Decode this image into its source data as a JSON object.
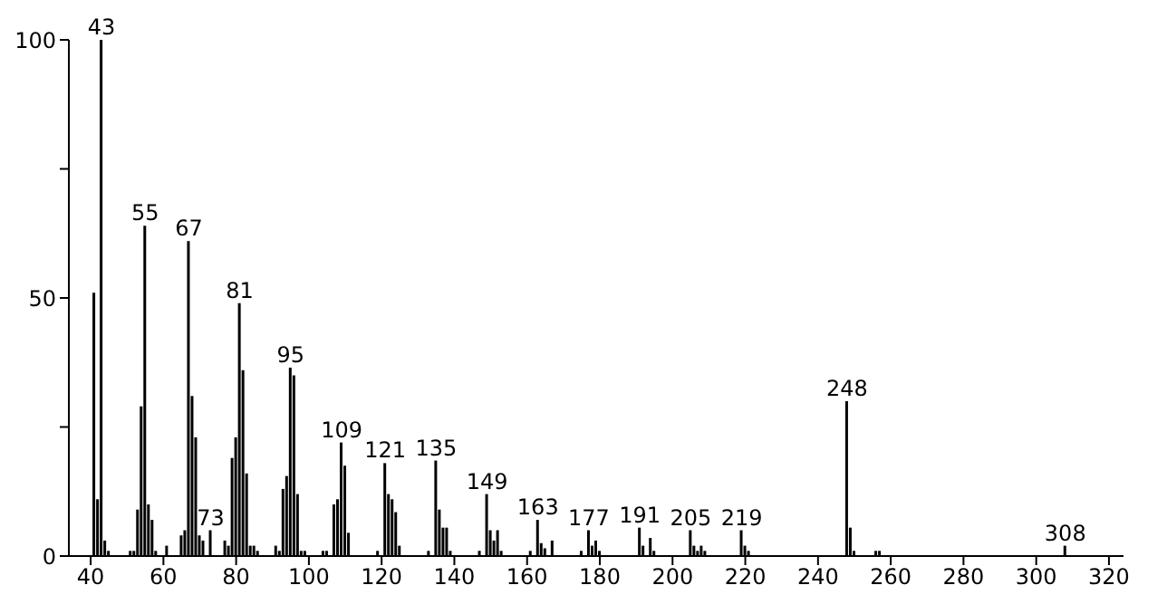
{
  "chart_data": {
    "type": "bar",
    "color": "#000000",
    "x": [
      41,
      42,
      43,
      44,
      45,
      51,
      52,
      53,
      54,
      55,
      56,
      57,
      58,
      61,
      65,
      66,
      67,
      68,
      69,
      70,
      71,
      73,
      77,
      78,
      79,
      80,
      81,
      82,
      83,
      84,
      85,
      86,
      91,
      92,
      93,
      94,
      95,
      96,
      97,
      98,
      99,
      104,
      105,
      107,
      108,
      109,
      110,
      111,
      119,
      121,
      122,
      123,
      124,
      125,
      133,
      135,
      136,
      137,
      138,
      139,
      147,
      149,
      150,
      151,
      152,
      153,
      161,
      163,
      164,
      165,
      167,
      175,
      177,
      178,
      179,
      180,
      191,
      192,
      194,
      195,
      205,
      206,
      207,
      208,
      209,
      219,
      220,
      221,
      248,
      249,
      250,
      256,
      257,
      308
    ],
    "values": [
      51,
      11,
      100,
      3,
      1,
      1,
      1,
      9,
      29,
      64,
      10,
      7,
      1,
      2,
      4,
      5,
      61,
      31,
      23,
      4,
      3,
      5,
      3,
      2,
      19,
      23,
      49,
      36,
      16,
      2,
      2,
      1,
      2,
      1,
      13,
      15.5,
      36.5,
      35,
      12,
      1,
      1,
      1,
      1,
      10,
      11,
      22,
      17.5,
      4.5,
      1,
      18,
      12,
      11,
      8.5,
      2,
      1,
      18.5,
      9,
      5.5,
      5.5,
      1,
      1,
      12,
      5,
      3,
      5,
      1,
      1,
      7,
      2.5,
      1.5,
      3,
      1,
      5,
      2,
      3,
      1,
      5.5,
      2,
      3.5,
      1,
      5,
      2,
      1,
      2,
      1,
      5,
      2,
      1,
      30,
      5.5,
      1,
      1,
      1,
      2
    ],
    "xlim": [
      34,
      324
    ],
    "xticks": [
      40,
      60,
      80,
      100,
      120,
      140,
      160,
      180,
      200,
      220,
      240,
      260,
      280,
      300,
      320
    ],
    "ylim": [
      0,
      100
    ],
    "yticks": [
      0,
      {
        "value": 25,
        "label": null
      },
      50,
      {
        "value": 75,
        "label": null
      },
      100
    ],
    "annotations": [
      {
        "text": "43",
        "x": 43,
        "y": 100
      },
      {
        "text": "55",
        "x": 55,
        "y": 64
      },
      {
        "text": "67",
        "x": 67,
        "y": 61
      },
      {
        "text": "73",
        "x": 73,
        "y": 5
      },
      {
        "text": "81",
        "x": 81,
        "y": 49
      },
      {
        "text": "95",
        "x": 95,
        "y": 36.5
      },
      {
        "text": "109",
        "x": 109,
        "y": 22
      },
      {
        "text": "121",
        "x": 121,
        "y": 18
      },
      {
        "text": "135",
        "x": 135,
        "y": 18.5
      },
      {
        "text": "149",
        "x": 149,
        "y": 12
      },
      {
        "text": "163",
        "x": 163,
        "y": 7
      },
      {
        "text": "177",
        "x": 177,
        "y": 5
      },
      {
        "text": "191",
        "x": 191,
        "y": 5.5
      },
      {
        "text": "205",
        "x": 205,
        "y": 5
      },
      {
        "text": "219",
        "x": 219,
        "y": 5
      },
      {
        "text": "248",
        "x": 248,
        "y": 30
      },
      {
        "text": "308",
        "x": 308,
        "y": 2
      }
    ]
  }
}
